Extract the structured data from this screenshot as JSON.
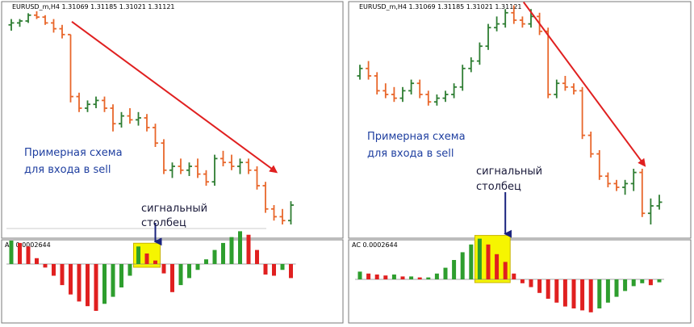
{
  "panels": [
    {
      "header": "EURUSD_m,H4  1.31069 1.31185 1.31021 1.31121",
      "ac_label": "AC 0.0002644",
      "note_lines": [
        "Примерная схема",
        "для входа в sell"
      ],
      "signal_lines": [
        "сигнальный",
        "столбец"
      ]
    },
    {
      "header": "EURUSD_m,H4  1.31069 1.31185 1.31021 1.31121",
      "ac_label": "AC 0.0002644",
      "note_lines": [
        "Примерная схема",
        "для входа в sell"
      ],
      "signal_lines": [
        "сигнальный",
        "столбец"
      ]
    }
  ],
  "colors": {
    "up_bar": "#2e7d32",
    "down_bar": "#e8662a",
    "ac_up": "#2e9e2e",
    "ac_down": "#e02020",
    "arrow": "#e02020",
    "signal_arrow": "#1a237e",
    "highlight": "#f6f500",
    "note_text": "#1f3fa0"
  },
  "chart_data": [
    {
      "type": "ohlc",
      "title": "EURUSD_m,H4",
      "series": [
        {
          "name": "EURUSD_m,H4",
          "bars": [
            [
              95.0,
              98.0,
              92.0,
              96.0
            ],
            [
              96.0,
              98.0,
              94.0,
              97.0
            ],
            [
              97.0,
              101.0,
              96.0,
              100.0
            ],
            [
              100.0,
              102.0,
              98.0,
              99.0
            ],
            [
              99.0,
              100.0,
              95.0,
              96.0
            ],
            [
              96.0,
              98.0,
              91.0,
              93.0
            ],
            [
              93.0,
              95.0,
              88.0,
              90.0
            ],
            [
              90.0,
              90.0,
              55.0,
              58.0
            ],
            [
              58.0,
              60.0,
              50.0,
              52.0
            ],
            [
              52.0,
              56.0,
              50.0,
              54.0
            ],
            [
              54.0,
              58.0,
              52.0,
              56.0
            ],
            [
              56.0,
              58.0,
              50.0,
              52.0
            ],
            [
              52.0,
              54.0,
              40.0,
              44.0
            ],
            [
              44.0,
              50.0,
              42.0,
              48.0
            ],
            [
              48.0,
              52.0,
              44.0,
              46.0
            ],
            [
              46.0,
              50.0,
              43.0,
              47.0
            ],
            [
              47.0,
              49.0,
              40.0,
              42.0
            ],
            [
              42.0,
              44.0,
              32.0,
              34.0
            ],
            [
              34.0,
              36.0,
              18.0,
              20.0
            ],
            [
              20.0,
              24.0,
              16.0,
              22.0
            ],
            [
              22.0,
              26.0,
              18.0,
              20.0
            ],
            [
              20.0,
              24.0,
              17.0,
              22.0
            ],
            [
              22.0,
              26.0,
              16.0,
              18.0
            ],
            [
              18.0,
              20.0,
              12.0,
              14.0
            ],
            [
              14.0,
              28.0,
              12.0,
              26.0
            ],
            [
              26.0,
              30.0,
              22.0,
              24.0
            ],
            [
              24.0,
              28.0,
              20.0,
              22.0
            ],
            [
              22.0,
              26.0,
              18.0,
              24.0
            ],
            [
              24.0,
              26.0,
              18.0,
              20.0
            ],
            [
              20.0,
              22.0,
              10.0,
              12.0
            ],
            [
              12.0,
              14.0,
              -2.0,
              0.0
            ],
            [
              0.0,
              2.0,
              -6.0,
              -4.0
            ],
            [
              -4.0,
              0.0,
              -8.0,
              -6.0
            ],
            [
              -6.0,
              4.0,
              -8.0,
              2.0
            ]
          ]
        }
      ],
      "ac": [
        2.0,
        1.8,
        1.5,
        0.5,
        -0.3,
        -1.0,
        -1.8,
        -2.6,
        -3.2,
        -3.6,
        -4.0,
        -3.4,
        -2.8,
        -2.0,
        -1.0,
        1.5,
        0.9,
        0.3,
        -0.8,
        -2.4,
        -1.8,
        -1.2,
        -0.5,
        0.4,
        1.2,
        1.8,
        2.3,
        2.8,
        2.5,
        1.2,
        -0.9,
        -1.0,
        -0.5,
        -1.2
      ],
      "ac_zero": "0",
      "signal_index": 17,
      "highlight_range": [
        15,
        17
      ],
      "arrow_from_bar": 6,
      "arrow_to_bar": 33
    },
    {
      "type": "ohlc",
      "title": "EURUSD_m,H4",
      "series": [
        {
          "name": "EURUSD_m,H4",
          "bars": [
            [
              60.0,
              66.0,
              58.0,
              64.0
            ],
            [
              64.0,
              68.0,
              58.0,
              60.0
            ],
            [
              60.0,
              62.0,
              50.0,
              52.0
            ],
            [
              52.0,
              56.0,
              48.0,
              50.0
            ],
            [
              50.0,
              54.0,
              46.0,
              48.0
            ],
            [
              48.0,
              54.0,
              46.0,
              52.0
            ],
            [
              52.0,
              58.0,
              50.0,
              56.0
            ],
            [
              56.0,
              58.0,
              48.0,
              50.0
            ],
            [
              50.0,
              52.0,
              44.0,
              46.0
            ],
            [
              46.0,
              50.0,
              44.0,
              48.0
            ],
            [
              48.0,
              52.0,
              46.0,
              50.0
            ],
            [
              50.0,
              56.0,
              48.0,
              54.0
            ],
            [
              54.0,
              66.0,
              52.0,
              64.0
            ],
            [
              64.0,
              70.0,
              62.0,
              68.0
            ],
            [
              68.0,
              78.0,
              66.0,
              76.0
            ],
            [
              76.0,
              88.0,
              74.0,
              86.0
            ],
            [
              86.0,
              92.0,
              84.0,
              88.0
            ],
            [
              88.0,
              96.0,
              86.0,
              94.0
            ],
            [
              94.0,
              98.0,
              88.0,
              90.0
            ],
            [
              90.0,
              92.0,
              86.0,
              88.0
            ],
            [
              88.0,
              96.0,
              86.0,
              92.0
            ],
            [
              92.0,
              94.0,
              82.0,
              84.0
            ],
            [
              84.0,
              86.0,
              48.0,
              50.0
            ],
            [
              50.0,
              58.0,
              48.0,
              56.0
            ],
            [
              56.0,
              60.0,
              52.0,
              54.0
            ],
            [
              54.0,
              56.0,
              50.0,
              52.0
            ],
            [
              52.0,
              54.0,
              26.0,
              28.0
            ],
            [
              28.0,
              30.0,
              16.0,
              18.0
            ],
            [
              18.0,
              20.0,
              4.0,
              6.0
            ],
            [
              6.0,
              8.0,
              0.0,
              2.0
            ],
            [
              2.0,
              4.0,
              -2.0,
              0.0
            ],
            [
              0.0,
              4.0,
              -4.0,
              2.0
            ],
            [
              2.0,
              10.0,
              -2.0,
              8.0
            ],
            [
              8.0,
              10.0,
              -16.0,
              -14.0
            ],
            [
              -14.0,
              -6.0,
              -20.0,
              -10.0
            ],
            [
              -10.0,
              -4.0,
              -12.0,
              -8.0
            ]
          ]
        }
      ],
      "ac": [
        0.8,
        0.6,
        0.5,
        0.4,
        0.5,
        0.3,
        0.3,
        0.2,
        0.2,
        0.6,
        1.2,
        2.0,
        2.8,
        3.6,
        4.2,
        3.6,
        2.6,
        1.8,
        0.6,
        -0.4,
        -0.8,
        -1.4,
        -2.0,
        -2.4,
        -2.8,
        -3.0,
        -3.2,
        -3.4,
        -3.0,
        -2.4,
        -1.8,
        -1.2,
        -0.7,
        -0.4,
        -0.6,
        -0.3
      ],
      "ac_zero": "0",
      "signal_index": 17,
      "highlight_range": [
        14,
        17
      ],
      "arrow_from_bar": 18,
      "arrow_to_bar": 35
    }
  ]
}
